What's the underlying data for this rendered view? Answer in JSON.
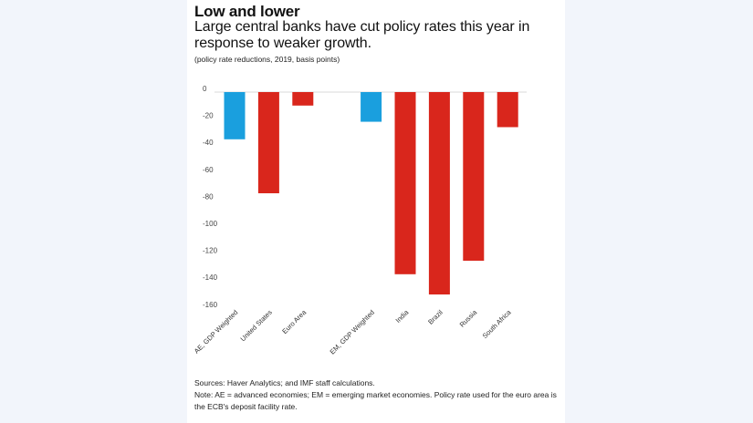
{
  "header": {
    "title": "Low and lower",
    "subtitle": "Large central banks have cut policy rates this year in response to weaker growth.",
    "unit_note": "(policy rate reductions, 2019, basis points)"
  },
  "footer": {
    "sources": "Sources: Haver Analytics; and IMF staff calculations.",
    "note": "Note: AE = advanced economies; EM = emerging market economies. Policy rate used for the euro area is the ECB's deposit facility rate."
  },
  "colors": {
    "advanced_aggregate": "#1a9fde",
    "country": "#d9261c",
    "axis_line": "#d8d8d8"
  },
  "chart_data": {
    "type": "bar",
    "title": "Low and lower",
    "subtitle": "Large central banks have cut policy rates this year in response to weaker growth.",
    "xlabel": "",
    "ylabel": "",
    "unit": "basis points",
    "categories": [
      "AE, GDP Weighted",
      "United States",
      "Euro Area",
      "",
      "EM, GDP Weighted",
      "India",
      "Brazil",
      "Russia",
      "South Africa"
    ],
    "values": [
      -35,
      -75,
      -10,
      null,
      -22,
      -135,
      -150,
      -125,
      -26
    ],
    "bar_color_keys": [
      "advanced_aggregate",
      "country",
      "country",
      null,
      "advanced_aggregate",
      "country",
      "country",
      "country",
      "country"
    ],
    "ylim": [
      -160,
      0
    ],
    "yticks": [
      0,
      -20,
      -40,
      -60,
      -80,
      -100,
      -120,
      -140,
      -160
    ],
    "grid": false,
    "legend": "none"
  }
}
